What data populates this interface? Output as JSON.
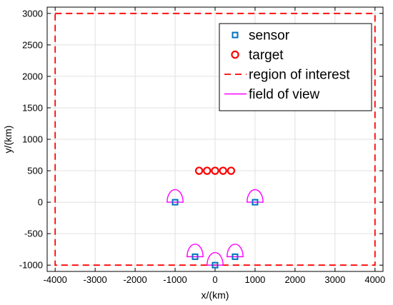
{
  "chart_data": {
    "type": "scatter",
    "title": "",
    "xlabel": "x/(km)",
    "ylabel": "y/(km)",
    "xlim": [
      -4200,
      4200
    ],
    "ylim": [
      -1100,
      3100
    ],
    "xticks": [
      -4000,
      -3000,
      -2000,
      -1000,
      0,
      1000,
      2000,
      3000,
      4000
    ],
    "yticks": [
      -1000,
      -500,
      0,
      500,
      1000,
      1500,
      2000,
      2500,
      3000
    ],
    "xtick_labels": [
      "-4000",
      "-3000",
      "-2000",
      "-1000",
      "0",
      "1000",
      "2000",
      "3000",
      "4000"
    ],
    "ytick_labels": [
      "-1000",
      "-500",
      "0",
      "500",
      "1000",
      "1500",
      "2000",
      "2500",
      "3000"
    ],
    "grid": true,
    "legend_position": "top-right",
    "series": [
      {
        "name": "sensor",
        "marker": "square",
        "color": "#0072BD",
        "points": [
          [
            -1000,
            0
          ],
          [
            1000,
            0
          ],
          [
            -500,
            -866
          ],
          [
            500,
            -866
          ],
          [
            0,
            -1000
          ]
        ]
      },
      {
        "name": "target",
        "marker": "circle",
        "color": "#FF0000",
        "points": [
          [
            -400,
            500
          ],
          [
            -200,
            500
          ],
          [
            0,
            500
          ],
          [
            200,
            500
          ],
          [
            400,
            500
          ]
        ]
      },
      {
        "name": "region of interest",
        "style": "dashed-line",
        "color": "#FF0000",
        "rect": {
          "x": [
            -4000,
            4000
          ],
          "y": [
            -1000,
            3000
          ]
        }
      },
      {
        "name": "field of view",
        "style": "line",
        "color": "#FF00FF",
        "radius": 200
      }
    ]
  }
}
